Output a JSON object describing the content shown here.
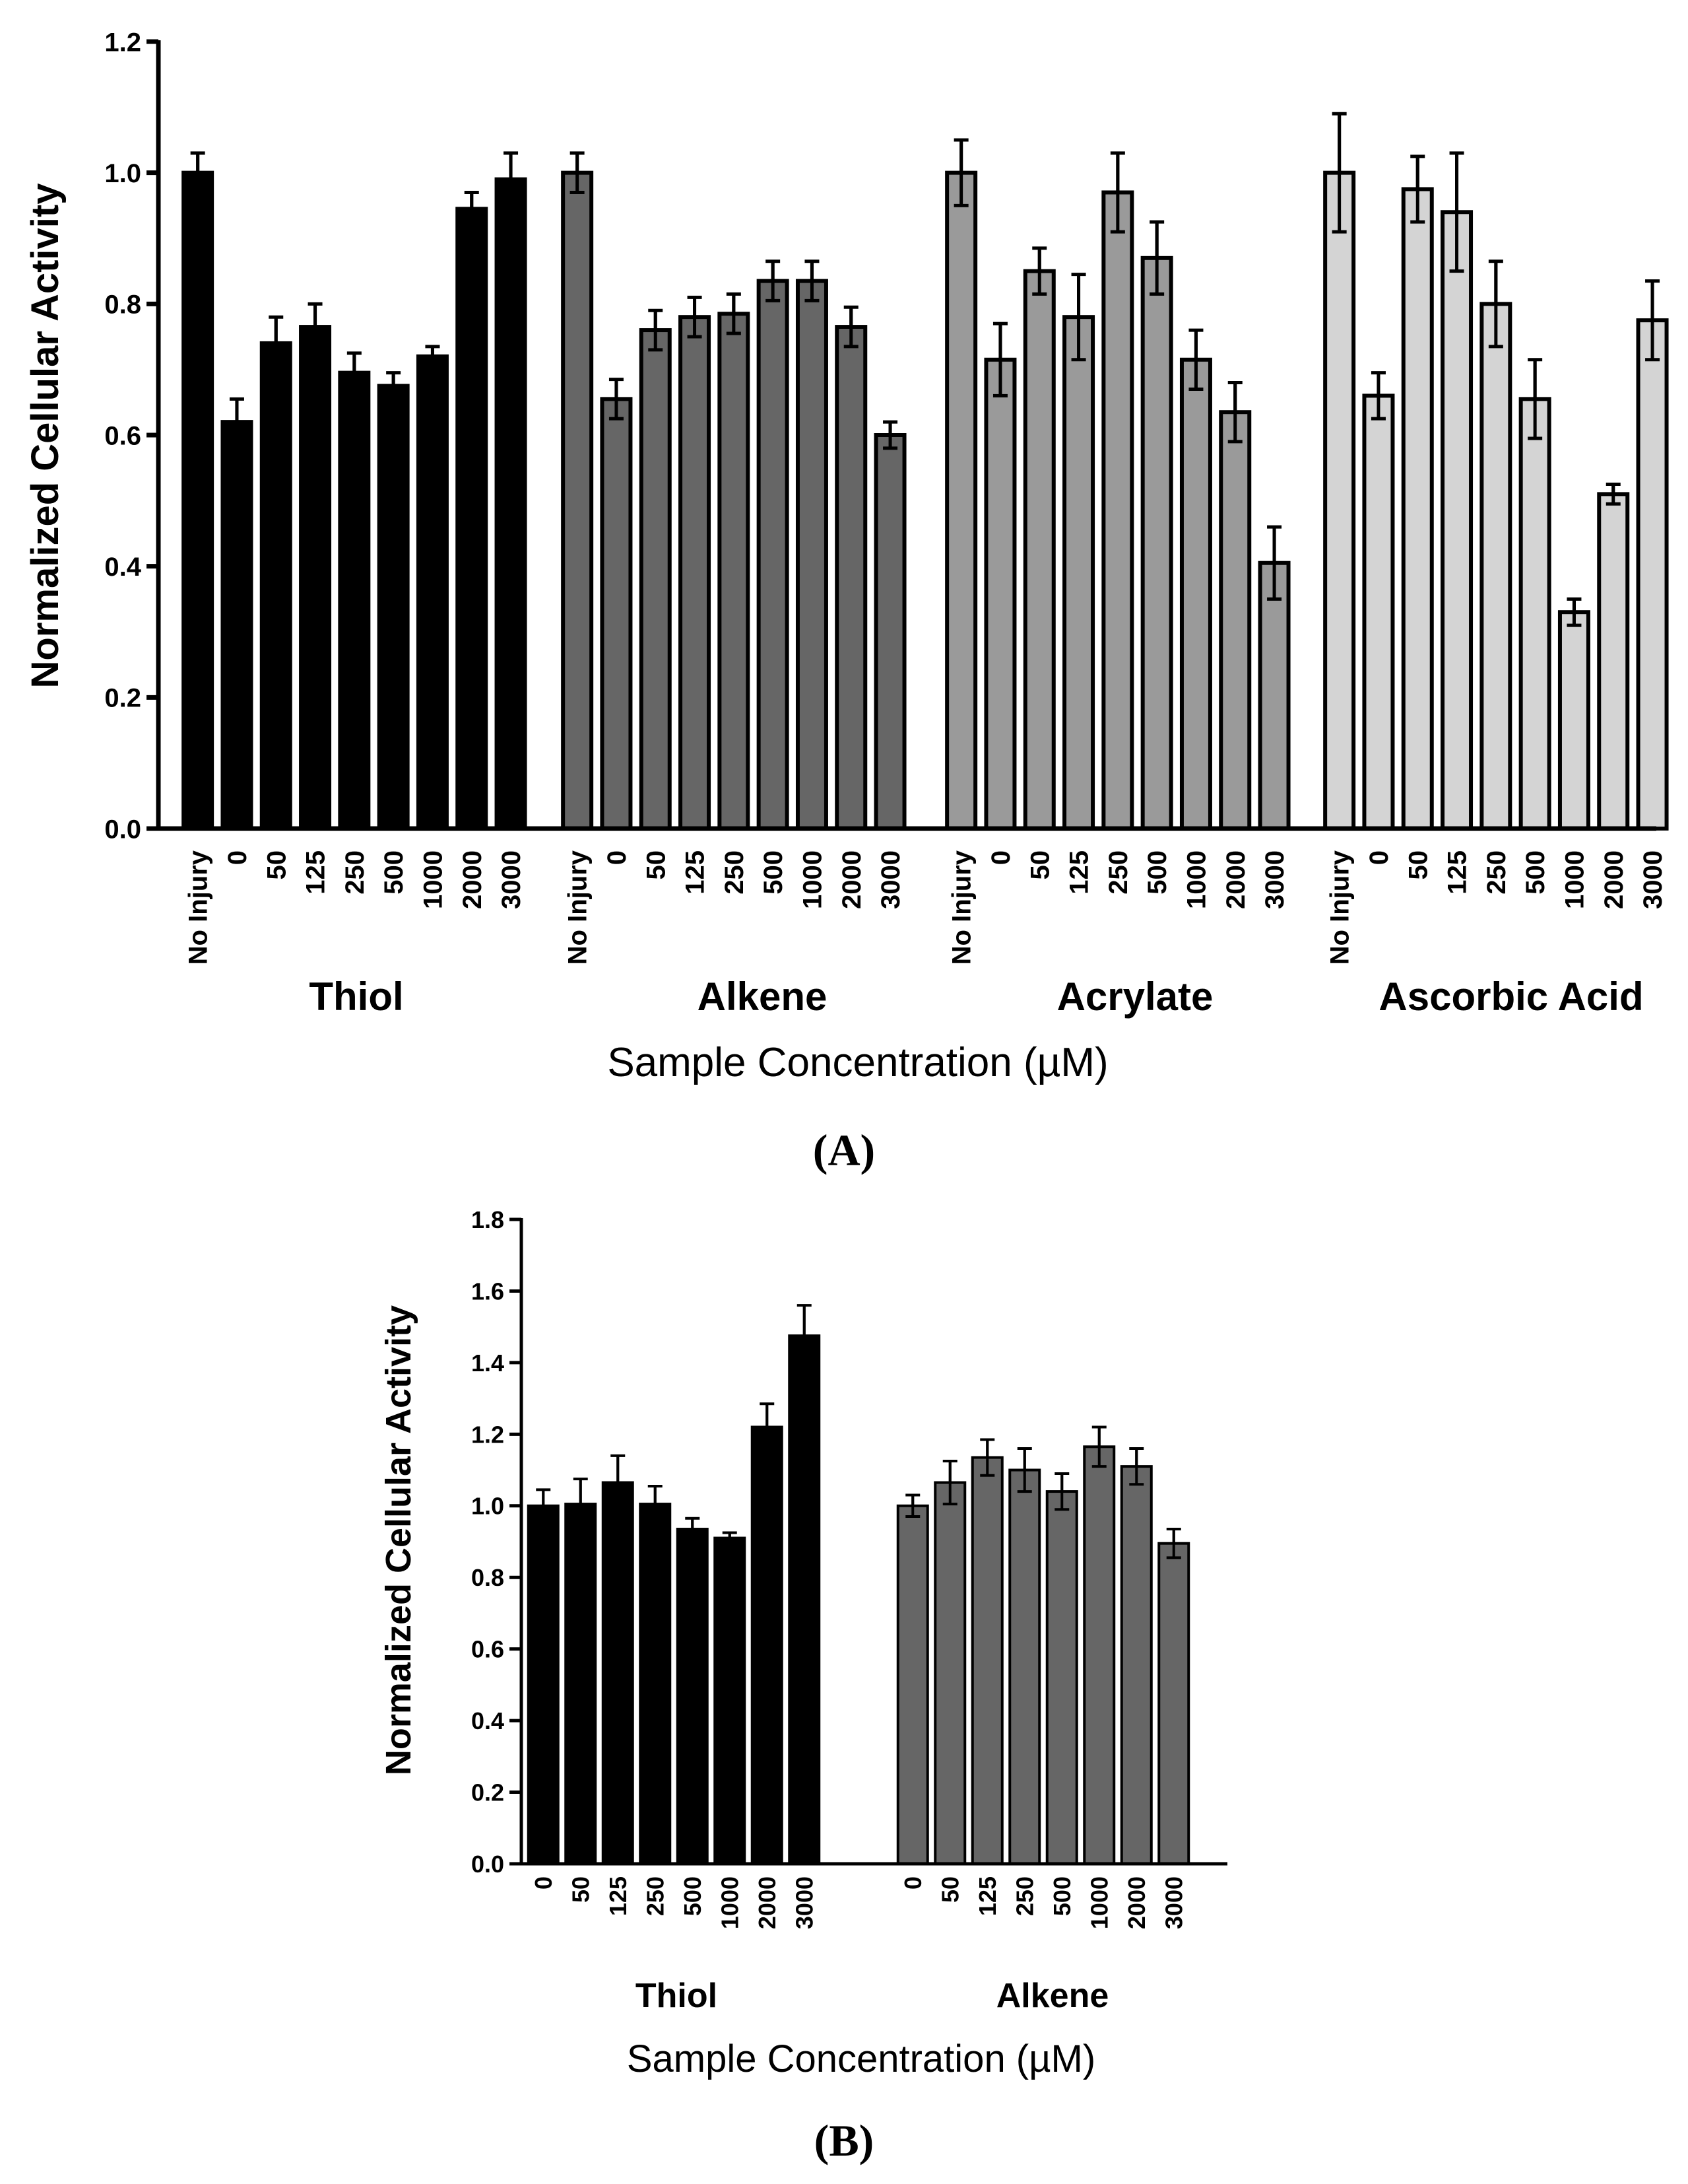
{
  "chart_data": [
    {
      "panel": "A",
      "type": "bar",
      "ylabel": "Normalized Cellular Activity",
      "xlabel": "Sample Concentration (µM)",
      "ylim": [
        0,
        1.2
      ],
      "yticks": [
        "0.0",
        "0.2",
        "0.4",
        "0.6",
        "0.8",
        "1.0",
        "1.2"
      ],
      "panel_label": "(A)",
      "groups": [
        {
          "name": "Thiol",
          "color": "#000000",
          "categories": [
            "No Injury",
            "0",
            "50",
            "125",
            "250",
            "500",
            "1000",
            "2000",
            "3000"
          ],
          "values": [
            1.0,
            0.62,
            0.74,
            0.765,
            0.695,
            0.675,
            0.72,
            0.945,
            0.99
          ],
          "errors": [
            0.03,
            0.035,
            0.04,
            0.035,
            0.03,
            0.02,
            0.015,
            0.025,
            0.04
          ]
        },
        {
          "name": "Alkene",
          "color": "#666666",
          "categories": [
            "No Injury",
            "0",
            "50",
            "125",
            "250",
            "500",
            "1000",
            "2000",
            "3000"
          ],
          "values": [
            1.0,
            0.655,
            0.76,
            0.78,
            0.785,
            0.835,
            0.835,
            0.765,
            0.6
          ],
          "errors": [
            0.03,
            0.03,
            0.03,
            0.03,
            0.03,
            0.03,
            0.03,
            0.03,
            0.02
          ]
        },
        {
          "name": "Acrylate",
          "color": "#9a9a9a",
          "categories": [
            "No Injury",
            "0",
            "50",
            "125",
            "250",
            "500",
            "1000",
            "2000",
            "3000"
          ],
          "values": [
            1.0,
            0.715,
            0.85,
            0.78,
            0.97,
            0.87,
            0.715,
            0.635,
            0.405
          ],
          "errors": [
            0.05,
            0.055,
            0.035,
            0.065,
            0.06,
            0.055,
            0.045,
            0.045,
            0.055
          ]
        },
        {
          "name": "Ascorbic Acid",
          "color": "#d4d4d4",
          "categories": [
            "No Injury",
            "0",
            "50",
            "125",
            "250",
            "500",
            "1000",
            "2000",
            "3000"
          ],
          "values": [
            1.0,
            0.66,
            0.975,
            0.94,
            0.8,
            0.655,
            0.33,
            0.51,
            0.775
          ],
          "errors": [
            0.09,
            0.035,
            0.05,
            0.09,
            0.065,
            0.06,
            0.02,
            0.015,
            0.06
          ]
        }
      ]
    },
    {
      "panel": "B",
      "type": "bar",
      "ylabel": "Normalized Cellular Activity",
      "xlabel": "Sample Concentration (µM)",
      "ylim": [
        0,
        1.8
      ],
      "yticks": [
        "0.0",
        "0.2",
        "0.4",
        "0.6",
        "0.8",
        "1.0",
        "1.2",
        "1.4",
        "1.6",
        "1.8"
      ],
      "panel_label": "(B)",
      "groups": [
        {
          "name": "Thiol",
          "color": "#000000",
          "categories": [
            "0",
            "50",
            "125",
            "250",
            "500",
            "1000",
            "2000",
            "3000"
          ],
          "values": [
            1.0,
            1.005,
            1.065,
            1.005,
            0.935,
            0.91,
            1.22,
            1.475
          ],
          "errors": [
            0.045,
            0.07,
            0.075,
            0.05,
            0.03,
            0.015,
            0.065,
            0.085
          ]
        },
        {
          "name": "Alkene",
          "color": "#666666",
          "categories": [
            "0",
            "50",
            "125",
            "250",
            "500",
            "1000",
            "2000",
            "3000"
          ],
          "values": [
            1.0,
            1.065,
            1.135,
            1.1,
            1.04,
            1.165,
            1.11,
            0.895
          ],
          "errors": [
            0.03,
            0.06,
            0.05,
            0.06,
            0.05,
            0.055,
            0.05,
            0.04
          ]
        }
      ]
    }
  ]
}
